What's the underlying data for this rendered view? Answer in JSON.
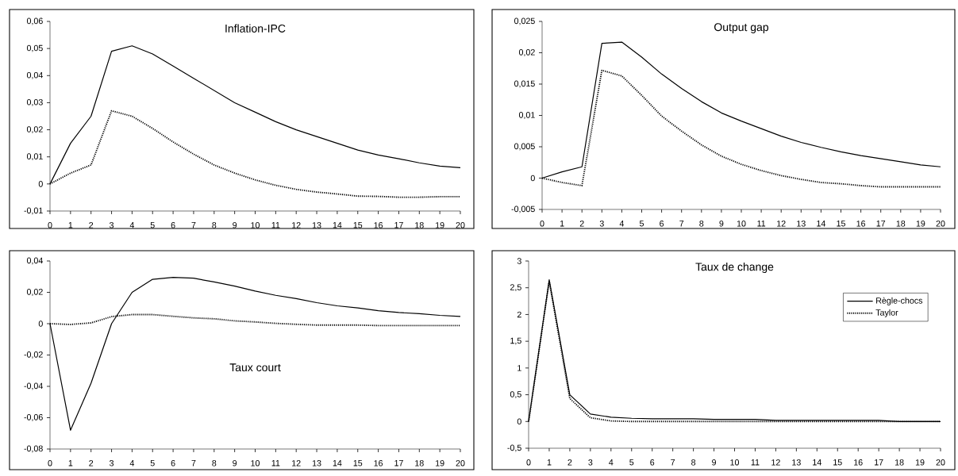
{
  "chart_data": [
    {
      "type": "line",
      "title": "Inflation-IPC",
      "x": [
        0,
        1,
        2,
        3,
        4,
        5,
        6,
        7,
        8,
        9,
        10,
        11,
        12,
        13,
        14,
        15,
        16,
        17,
        18,
        19,
        20
      ],
      "xlim": [
        0,
        20
      ],
      "xticks": [
        0,
        1,
        2,
        3,
        4,
        5,
        6,
        7,
        8,
        9,
        10,
        11,
        12,
        13,
        14,
        15,
        16,
        17,
        18,
        19,
        20
      ],
      "ylim": [
        -0.01,
        0.06
      ],
      "yticks": [
        {
          "value": -0.01,
          "label": "-0,01"
        },
        0,
        {
          "value": 0.01,
          "label": "0,01"
        },
        {
          "value": 0.02,
          "label": "0,02"
        },
        {
          "value": 0.03,
          "label": "0,03"
        },
        {
          "value": 0.04,
          "label": "0,04"
        },
        {
          "value": 0.05,
          "label": "0,05"
        },
        {
          "value": 0.06,
          "label": "0,06"
        }
      ],
      "grid": false,
      "legend": false,
      "marker": "none",
      "series": [
        {
          "color": "#000000",
          "line_style": "solid",
          "values": [
            0,
            0.015,
            0.025,
            0.049,
            0.051,
            0.048,
            0.0435,
            0.039,
            0.0345,
            0.03,
            0.0265,
            0.023,
            0.02,
            0.0175,
            0.015,
            0.0125,
            0.0107,
            0.0093,
            0.0078,
            0.0066,
            0.006
          ]
        },
        {
          "color": "#000000",
          "line_style": "dotted",
          "values": [
            0,
            0.004,
            0.007,
            0.027,
            0.025,
            0.0205,
            0.0155,
            0.011,
            0.007,
            0.004,
            0.0015,
            -0.0005,
            -0.002,
            -0.003,
            -0.0037,
            -0.0045,
            -0.0046,
            -0.0049,
            -0.0049,
            -0.0047,
            -0.0047
          ]
        }
      ]
    },
    {
      "type": "line",
      "title": "Output gap",
      "x": [
        0,
        1,
        2,
        3,
        4,
        5,
        6,
        7,
        8,
        9,
        10,
        11,
        12,
        13,
        14,
        15,
        16,
        17,
        18,
        19,
        20
      ],
      "xlim": [
        0,
        20
      ],
      "xticks": [
        0,
        1,
        2,
        3,
        4,
        5,
        6,
        7,
        8,
        9,
        10,
        11,
        12,
        13,
        14,
        15,
        16,
        17,
        18,
        19,
        20
      ],
      "ylim": [
        -0.005,
        0.025
      ],
      "yticks": [
        {
          "value": -0.005,
          "label": "-0,005"
        },
        0,
        {
          "value": 0.005,
          "label": "0,005"
        },
        {
          "value": 0.01,
          "label": "0,01"
        },
        {
          "value": 0.015,
          "label": "0,015"
        },
        {
          "value": 0.02,
          "label": "0,02"
        },
        {
          "value": 0.025,
          "label": "0,025"
        }
      ],
      "grid": false,
      "legend": false,
      "marker": "none",
      "series": [
        {
          "color": "#000000",
          "line_style": "solid",
          "values": [
            0,
            0.001,
            0.0018,
            0.0215,
            0.0217,
            0.0193,
            0.0166,
            0.0143,
            0.0122,
            0.0104,
            0.0091,
            0.0079,
            0.0067,
            0.0057,
            0.0049,
            0.0042,
            0.0036,
            0.0031,
            0.0026,
            0.0021,
            0.0018
          ]
        },
        {
          "color": "#000000",
          "line_style": "dotted",
          "values": [
            0,
            -0.0007,
            -0.0012,
            0.0172,
            0.0163,
            0.0132,
            0.0099,
            0.0075,
            0.0053,
            0.0035,
            0.0022,
            0.0012,
            0.0004,
            -0.0002,
            -0.0007,
            -0.0009,
            -0.0012,
            -0.0014,
            -0.0014,
            -0.0014,
            -0.0014
          ]
        }
      ]
    },
    {
      "type": "line",
      "title": "Taux court",
      "x": [
        0,
        1,
        2,
        3,
        4,
        5,
        6,
        7,
        8,
        9,
        10,
        11,
        12,
        13,
        14,
        15,
        16,
        17,
        18,
        19,
        20
      ],
      "xlim": [
        0,
        20
      ],
      "xticks": [
        0,
        1,
        2,
        3,
        4,
        5,
        6,
        7,
        8,
        9,
        10,
        11,
        12,
        13,
        14,
        15,
        16,
        17,
        18,
        19,
        20
      ],
      "ylim": [
        -0.08,
        0.04
      ],
      "yticks": [
        {
          "value": -0.08,
          "label": "-0,08"
        },
        {
          "value": -0.06,
          "label": "-0,06"
        },
        {
          "value": -0.04,
          "label": "-0,04"
        },
        {
          "value": -0.02,
          "label": "-0,02"
        },
        0,
        {
          "value": 0.02,
          "label": "0,02"
        },
        {
          "value": 0.04,
          "label": "0,04"
        }
      ],
      "grid": false,
      "legend": false,
      "marker": "none",
      "series": [
        {
          "color": "#000000",
          "line_style": "solid",
          "values": [
            0,
            -0.068,
            -0.038,
            0,
            0.02,
            0.0283,
            0.0295,
            0.029,
            0.0266,
            0.024,
            0.0208,
            0.0181,
            0.016,
            0.0134,
            0.0114,
            0.0101,
            0.0083,
            0.0071,
            0.0064,
            0.0053,
            0.0046
          ]
        },
        {
          "color": "#000000",
          "line_style": "dotted",
          "values": [
            0,
            -0.0005,
            0.0005,
            0.0045,
            0.0058,
            0.0058,
            0.0047,
            0.0037,
            0.0031,
            0.0018,
            0.0011,
            0.0002,
            -0.0004,
            -0.0009,
            -0.0009,
            -0.0009,
            -0.0012,
            -0.0012,
            -0.0012,
            -0.0012,
            -0.0012
          ]
        }
      ]
    },
    {
      "type": "line",
      "title": "Taux de change",
      "x": [
        0,
        1,
        2,
        3,
        4,
        5,
        6,
        7,
        8,
        9,
        10,
        11,
        12,
        13,
        14,
        15,
        16,
        17,
        18,
        19,
        20
      ],
      "xlim": [
        0,
        20
      ],
      "xticks": [
        0,
        1,
        2,
        3,
        4,
        5,
        6,
        7,
        8,
        9,
        10,
        11,
        12,
        13,
        14,
        15,
        16,
        17,
        18,
        19,
        20
      ],
      "ylim": [
        -0.5,
        3
      ],
      "yticks": [
        {
          "value": -0.5,
          "label": "-0,5"
        },
        0,
        {
          "value": 0.5,
          "label": "0,5"
        },
        1,
        {
          "value": 1.5,
          "label": "1,5"
        },
        2,
        {
          "value": 2.5,
          "label": "2,5"
        },
        3
      ],
      "grid": false,
      "legend": "top right",
      "marker": "none",
      "series": [
        {
          "name": "Règle-chocs",
          "color": "#000000",
          "line_style": "solid",
          "values": [
            0,
            2.65,
            0.5,
            0.14,
            0.08,
            0.06,
            0.05,
            0.05,
            0.05,
            0.04,
            0.04,
            0.04,
            0.02,
            0.02,
            0.02,
            0.02,
            0.02,
            0.02,
            0,
            0,
            0
          ]
        },
        {
          "name": "Taylor",
          "color": "#000000",
          "line_style": "dotted",
          "values": [
            0,
            2.62,
            0.43,
            0.07,
            0.01,
            0,
            0,
            0,
            0,
            0,
            0,
            0,
            0,
            0,
            0,
            0,
            0,
            0,
            0,
            0,
            0
          ]
        }
      ]
    }
  ]
}
